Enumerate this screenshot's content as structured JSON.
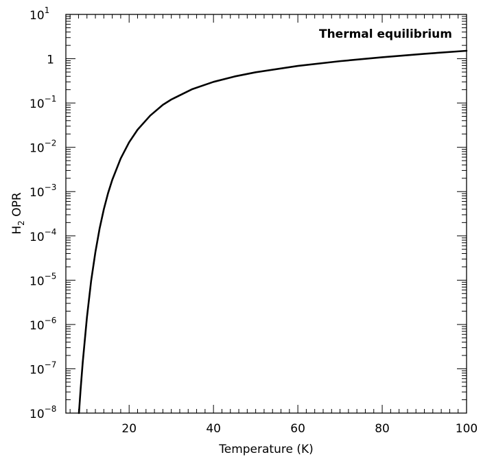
{
  "chart_data": {
    "type": "line",
    "title": "",
    "annotation": "Thermal equilibrium",
    "xlabel": "Temperature (K)",
    "ylabel": {
      "base": "H",
      "sub": "2",
      "rest": " OPR"
    },
    "xlim": [
      5,
      100
    ],
    "ylim": [
      1e-08,
      10
    ],
    "yscale": "log",
    "grid": false,
    "x_ticks": [
      {
        "value": 20,
        "label": "20"
      },
      {
        "value": 40,
        "label": "40"
      },
      {
        "value": 60,
        "label": "60"
      },
      {
        "value": 80,
        "label": "80"
      },
      {
        "value": 100,
        "label": "100"
      }
    ],
    "y_ticks": [
      {
        "value": 10,
        "base": "10",
        "exp": "1"
      },
      {
        "value": 1,
        "base": "1",
        "exp": ""
      },
      {
        "value": 0.1,
        "base": "10",
        "exp": "−1"
      },
      {
        "value": 0.01,
        "base": "10",
        "exp": "−2"
      },
      {
        "value": 0.001,
        "base": "10",
        "exp": "−3"
      },
      {
        "value": 0.0001,
        "base": "10",
        "exp": "−4"
      },
      {
        "value": 1e-05,
        "base": "10",
        "exp": "−5"
      },
      {
        "value": 1e-06,
        "base": "10",
        "exp": "−6"
      },
      {
        "value": 1e-07,
        "base": "10",
        "exp": "−7"
      },
      {
        "value": 1e-08,
        "base": "10",
        "exp": "−8"
      }
    ],
    "series": [
      {
        "color": "#000000",
        "x": [
          8.1,
          8.5,
          9,
          10,
          11,
          12,
          13,
          14,
          15,
          16,
          18,
          20,
          22,
          25,
          28,
          30,
          35,
          40,
          45,
          50,
          60,
          70,
          80,
          90,
          100
        ],
        "y": [
          1e-08,
          3.5e-08,
          1.4e-07,
          1.47e-06,
          9.8e-06,
          4.3e-05,
          0.000147,
          0.0004,
          0.00092,
          0.00184,
          0.0056,
          0.013,
          0.025,
          0.052,
          0.091,
          0.12,
          0.206,
          0.3,
          0.397,
          0.494,
          0.687,
          0.88,
          1.08,
          1.29,
          1.51
        ]
      }
    ]
  }
}
